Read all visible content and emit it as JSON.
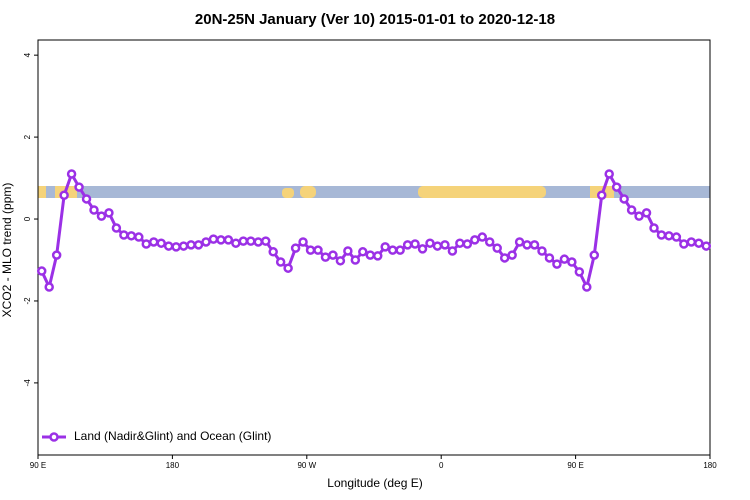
{
  "chart_data": {
    "type": "line",
    "title": "20N-25N January (Ver 10)   2015-01-01 to 2020-12-18",
    "x_label": "Longitude (deg E)",
    "y_label": "XCO2 - MLO trend (ppm)",
    "xlim": [
      90,
      540
    ],
    "ylim": [
      -5.76,
      4.37
    ],
    "xticks": [
      {
        "value": 90,
        "label": "90 E"
      },
      180,
      {
        "value": 270,
        "label": "90 W"
      },
      {
        "value": 360,
        "label": "0"
      },
      {
        "value": 450,
        "label": "90 E"
      },
      {
        "value": 540,
        "label": "180"
      }
    ],
    "yticks": [
      -4,
      -2,
      0,
      2,
      4
    ],
    "legend_position": "bottom-left",
    "x": [
      92.5,
      97.5,
      102.5,
      107.5,
      112.5,
      117.5,
      122.5,
      127.5,
      132.5,
      137.5,
      142.5,
      147.5,
      152.5,
      157.5,
      162.5,
      167.5,
      172.5,
      177.5,
      182.5,
      187.5,
      192.5,
      197.5,
      202.5,
      207.5,
      212.5,
      217.5,
      222.5,
      227.5,
      232.5,
      237.5,
      242.5,
      247.5,
      252.5,
      257.5,
      262.5,
      267.5,
      272.5,
      277.5,
      282.5,
      287.5,
      292.5,
      297.5,
      302.5,
      307.5,
      312.5,
      317.5,
      322.5,
      327.5,
      332.5,
      337.5,
      342.5,
      347.5,
      352.5,
      357.5,
      362.5,
      367.5,
      372.5,
      377.5,
      382.5,
      387.5,
      392.5,
      397.5,
      402.5,
      407.5,
      412.5,
      417.5,
      422.5,
      427.5,
      432.5,
      437.5,
      442.5,
      447.5,
      452.5,
      457.5,
      462.5,
      467.5,
      472.5,
      477.5,
      482.5,
      487.5,
      492.5,
      497.5,
      502.5,
      507.5,
      512.5,
      517.5,
      522.5,
      527.5,
      532.5,
      537.5
    ],
    "series": [
      {
        "name": "Land (Nadir&Glint) and Ocean (Glint)",
        "color": "#9b30e6",
        "values": [
          -1.27,
          -1.66,
          -0.88,
          0.58,
          1.1,
          0.78,
          0.49,
          0.22,
          0.07,
          0.15,
          -0.22,
          -0.39,
          -0.41,
          -0.44,
          -0.61,
          -0.56,
          -0.59,
          -0.66,
          -0.68,
          -0.66,
          -0.63,
          -0.63,
          -0.56,
          -0.49,
          -0.51,
          -0.51,
          -0.59,
          -0.54,
          -0.54,
          -0.56,
          -0.54,
          -0.8,
          -1.05,
          -1.2,
          -0.71,
          -0.56,
          -0.76,
          -0.76,
          -0.93,
          -0.88,
          -1.02,
          -0.78,
          -1.0,
          -0.8,
          -0.88,
          -0.9,
          -0.68,
          -0.76,
          -0.76,
          -0.63,
          -0.61,
          -0.73,
          -0.59,
          -0.66,
          -0.63,
          -0.78,
          -0.59,
          -0.61,
          -0.51,
          -0.44,
          -0.56,
          -0.71,
          -0.95,
          -0.88,
          -0.56,
          -0.63,
          -0.63,
          -0.78,
          -0.95,
          -1.1,
          -0.98,
          -1.05,
          -1.29,
          -1.66,
          -0.88,
          0.58,
          1.1,
          0.78,
          0.49,
          0.22,
          0.07,
          0.15,
          -0.22,
          -0.39,
          -0.41,
          -0.44,
          -0.61,
          -0.56,
          -0.59,
          -0.66
        ]
      }
    ]
  }
}
